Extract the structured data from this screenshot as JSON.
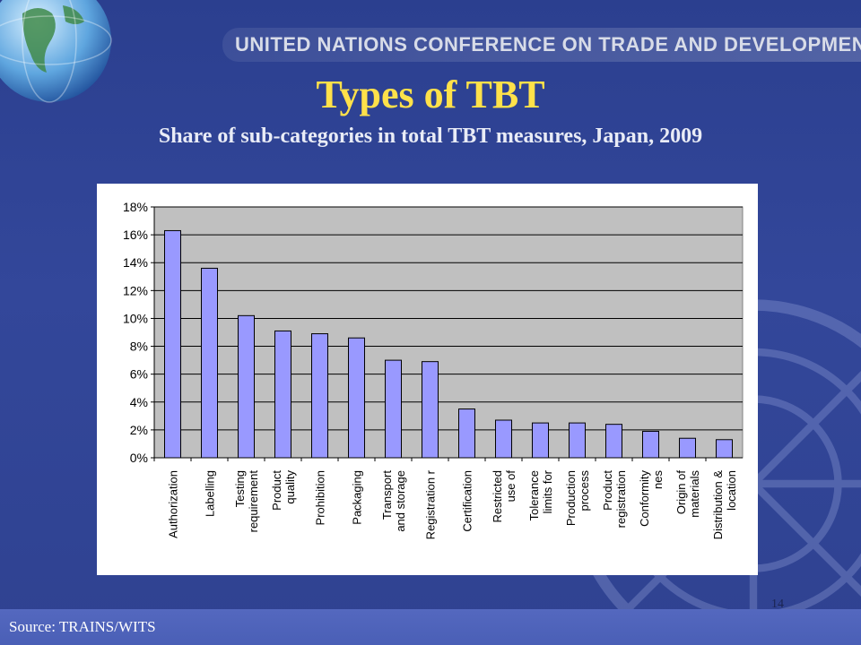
{
  "header": {
    "org_name": "UNITED NATIONS CONFERENCE ON TRADE AND DEVELOPMENT"
  },
  "slide": {
    "title": "Types of TBT",
    "subtitle": "Share of sub-categories in total TBT measures, Japan, 2009",
    "page_number": "14",
    "source": "Source: TRAINS/WITS"
  },
  "colors": {
    "title": "#ffe14a",
    "bar_fill": "#9999ff",
    "plot_bg": "#c0c0c0",
    "background": "#33479a"
  },
  "icons": [
    "globe-icon",
    "un-emblem-icon"
  ],
  "chart_data": {
    "type": "bar",
    "title": "",
    "xlabel": "",
    "ylabel": "",
    "ylim": [
      0,
      18
    ],
    "y_ticks": [
      "18%",
      "16%",
      "14%",
      "12%",
      "10%",
      "8%",
      "6%",
      "4%",
      "2%",
      "0%"
    ],
    "grid": true,
    "legend": "none",
    "categories": [
      [
        "Authorization"
      ],
      [
        "Labelling"
      ],
      [
        "Testing",
        "requirement"
      ],
      [
        "Product",
        "quality"
      ],
      [
        "Prohibition"
      ],
      [
        "Packaging"
      ],
      [
        "Transport",
        "and storage"
      ],
      [
        "Registration r"
      ],
      [
        "Certification"
      ],
      [
        "Restricted",
        "use of"
      ],
      [
        "Tolerance",
        "limits for"
      ],
      [
        "Production",
        "process"
      ],
      [
        "Product",
        "registration"
      ],
      [
        "Conformity",
        "nes"
      ],
      [
        "Origin of",
        "materials"
      ],
      [
        "Distribution &",
        "location"
      ]
    ],
    "values": [
      16.3,
      13.6,
      10.2,
      9.1,
      8.9,
      8.6,
      7.0,
      6.9,
      3.5,
      2.7,
      2.5,
      2.5,
      2.4,
      1.9,
      1.4,
      1.3
    ]
  }
}
